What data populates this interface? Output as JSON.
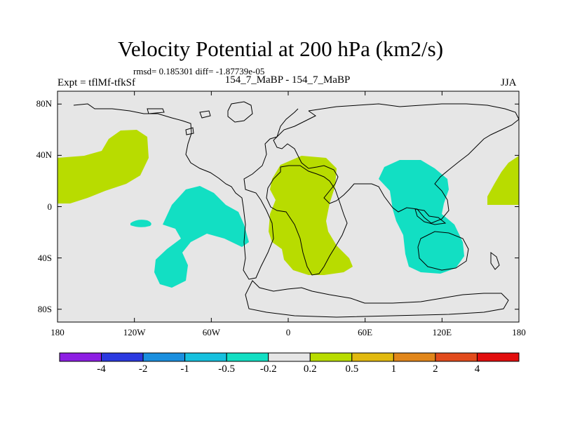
{
  "title": "Velocity Potential at 200 hPa (km2/s)",
  "stats_line": "rmsd= 0.185301 diff= -1.87739e-05",
  "experiment": "Expt = tflMf-tfkSf",
  "case_line": "154_7_MaBP - 154_7_MaBP",
  "season": "JJA",
  "y_axis": {
    "ticks": [
      80,
      40,
      0,
      -40,
      -80
    ],
    "labels": [
      "80N",
      "40N",
      "0",
      "40S",
      "80S"
    ],
    "range": [
      -90,
      90
    ]
  },
  "x_axis": {
    "ticks": [
      -180,
      -120,
      -60,
      0,
      60,
      120,
      180
    ],
    "labels": [
      "180",
      "120W",
      "60W",
      "0",
      "60E",
      "120E",
      "180"
    ],
    "range": [
      -180,
      180
    ]
  },
  "colorbar": {
    "colors": [
      "#8d1ee3",
      "#2b39e0",
      "#1a8fdf",
      "#16c0de",
      "#12dfc3",
      "#e6e6e6",
      "#b8dc00",
      "#e1b90f",
      "#e1861a",
      "#e24b1c",
      "#e20d0d"
    ],
    "labels": [
      "-4",
      "-2",
      "-1",
      "-0.5",
      "-0.2",
      "0.2",
      "0.5",
      "1",
      "2",
      "4"
    ]
  },
  "colors": {
    "background": "#e6e6e6",
    "positive_fill": "#b8dc00",
    "negative_fill": "#12dfc3",
    "coastline": "#000000"
  },
  "chart_data": {
    "type": "contour-map",
    "projection": "cylindrical-equidistant",
    "field": "200 hPa velocity potential difference",
    "units": "km2/s",
    "shaded_regions": [
      {
        "sign": "positive",
        "level": "0.2-0.5",
        "approx_lon": [
          -180,
          -115
        ],
        "approx_lat": [
          2,
          55
        ]
      },
      {
        "sign": "negative",
        "level": "-0.5--0.2",
        "approx_lon": [
          -100,
          -32
        ],
        "approx_lat": [
          -62,
          16
        ]
      },
      {
        "sign": "positive",
        "level": "0.2-0.5",
        "approx_lon": [
          -15,
          50
        ],
        "approx_lat": [
          -53,
          40
        ]
      },
      {
        "sign": "negative",
        "level": "-0.5--0.2",
        "approx_lon": [
          70,
          140
        ],
        "approx_lat": [
          -52,
          38
        ]
      },
      {
        "sign": "positive",
        "level": "0.2-0.5",
        "approx_lon": [
          155,
          180
        ],
        "approx_lat": [
          2,
          40
        ]
      }
    ]
  }
}
